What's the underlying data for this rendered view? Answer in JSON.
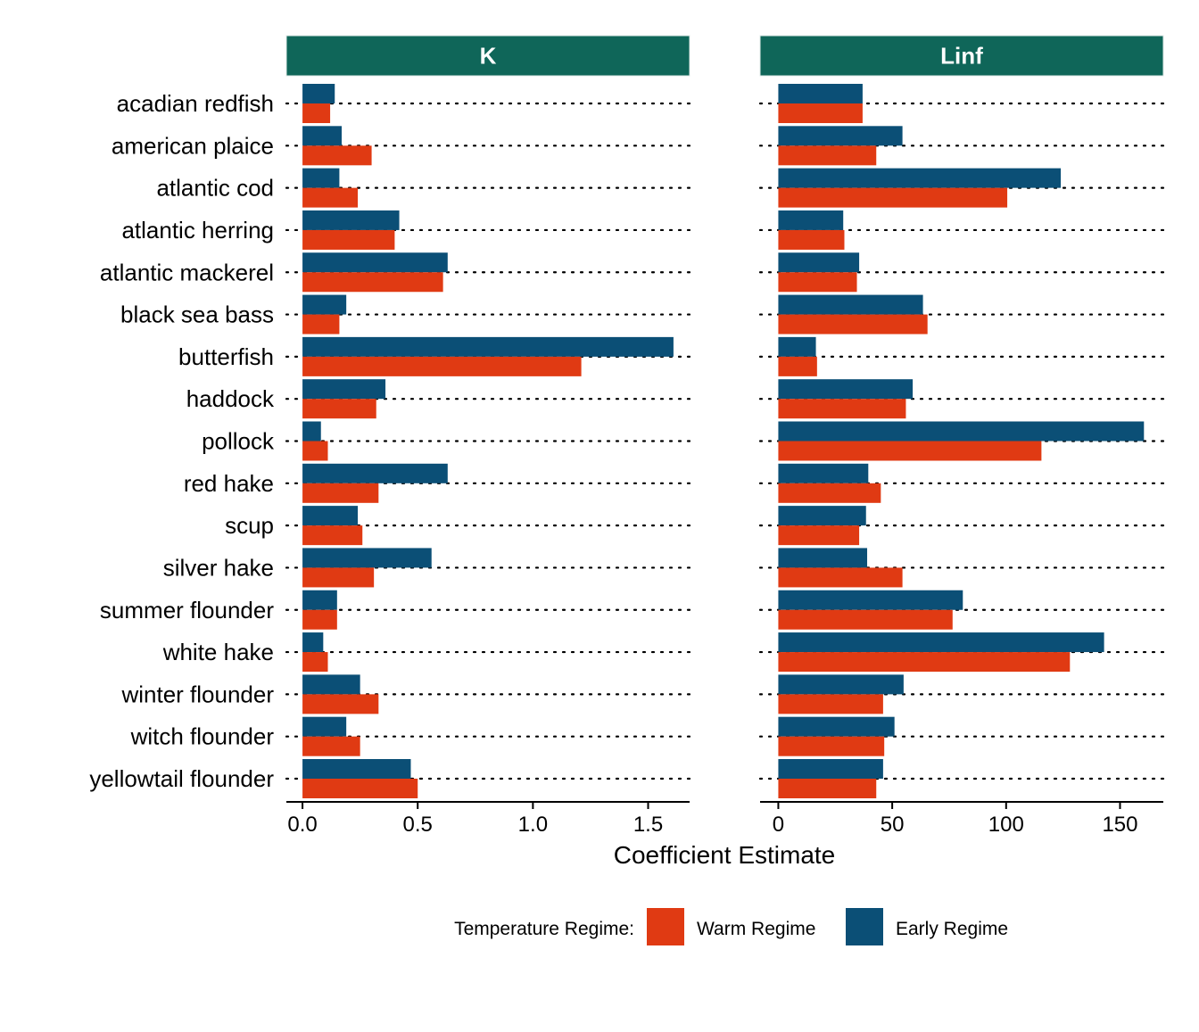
{
  "chart_data": {
    "type": "bar",
    "orientation": "horizontal",
    "xlabel": "Coefficient Estimate",
    "categories": [
      "acadian redfish",
      "american plaice",
      "atlantic cod",
      "atlantic herring",
      "atlantic mackerel",
      "black sea bass",
      "butterfish",
      "haddock",
      "pollock",
      "red hake",
      "scup",
      "silver hake",
      "summer flounder",
      "white hake",
      "winter flounder",
      "witch flounder",
      "yellowtail flounder"
    ],
    "legend": {
      "title": "Temperature Regime:",
      "position": "bottom",
      "entries": [
        {
          "name": "Warm Regime",
          "color": "#E03A13"
        },
        {
          "name": "Early Regime",
          "color": "#0B4F76"
        }
      ]
    },
    "strip_color": "#0F6659",
    "panels": [
      {
        "title": "K",
        "xlim": [
          -0.07,
          1.68
        ],
        "ticks": [
          0.0,
          0.5,
          1.0,
          1.5
        ],
        "tick_labels": [
          "0.0",
          "0.5",
          "1.0",
          "1.5"
        ],
        "series": [
          {
            "name": "Early Regime",
            "values": [
              0.14,
              0.17,
              0.16,
              0.42,
              0.63,
              0.19,
              1.61,
              0.36,
              0.08,
              0.63,
              0.24,
              0.56,
              0.15,
              0.09,
              0.25,
              0.19,
              0.47
            ]
          },
          {
            "name": "Warm Regime",
            "values": [
              0.12,
              0.3,
              0.24,
              0.4,
              0.61,
              0.16,
              1.21,
              0.32,
              0.11,
              0.33,
              0.26,
              0.31,
              0.15,
              0.11,
              0.33,
              0.25,
              0.5
            ]
          }
        ]
      },
      {
        "title": "Linf",
        "xlim": [
          -8.0,
          169.0
        ],
        "ticks": [
          0,
          50,
          100,
          150
        ],
        "tick_labels": [
          "0",
          "50",
          "100",
          "150"
        ],
        "series": [
          {
            "name": "Early Regime",
            "values": [
              37.0,
              54.5,
              124.0,
              28.5,
              35.5,
              63.5,
              16.5,
              59.0,
              160.5,
              39.5,
              38.5,
              39.0,
              81.0,
              143.0,
              55.0,
              51.0,
              46.0
            ]
          },
          {
            "name": "Warm Regime",
            "values": [
              37.0,
              43.0,
              100.5,
              29.0,
              34.5,
              65.5,
              17.0,
              56.0,
              115.5,
              45.0,
              35.5,
              54.5,
              76.5,
              128.0,
              46.0,
              46.5,
              43.0
            ]
          }
        ]
      }
    ]
  }
}
